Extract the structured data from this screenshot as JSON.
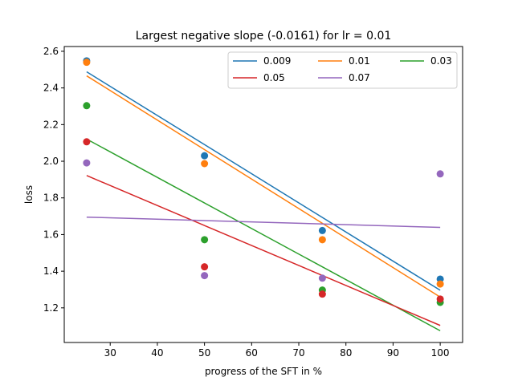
{
  "chart_data": {
    "type": "scatter",
    "title": "Largest negative slope (-0.0161) for lr = 0.01",
    "xlabel": "progress of the SFT in %",
    "ylabel": "loss",
    "xlim": [
      20.25,
      104.75
    ],
    "ylim": [
      1.011,
      2.626
    ],
    "xticks": [
      30,
      40,
      50,
      60,
      70,
      80,
      90,
      100
    ],
    "yticks": [
      1.2,
      1.4,
      1.6,
      1.8,
      2.0,
      2.2,
      2.4,
      2.6
    ],
    "ytick_labels": [
      "1.2",
      "1.4",
      "1.6",
      "1.8",
      "2.0",
      "2.2",
      "2.4",
      "2.6"
    ],
    "x": [
      25,
      50,
      75,
      100
    ],
    "legend_placement": "top-right",
    "legend_columns": 3,
    "grid": false,
    "series": [
      {
        "name": "0.009",
        "color": "#1f77b4",
        "points": [
          2.548,
          2.03,
          1.622,
          1.357
        ],
        "fit": [
          2.488,
          1.296
        ]
      },
      {
        "name": "0.01",
        "color": "#ff7f0e",
        "points": [
          2.54,
          1.987,
          1.572,
          1.33
        ],
        "fit": [
          2.466,
          1.259
        ]
      },
      {
        "name": "0.03",
        "color": "#2ca02c",
        "points": [
          2.303,
          1.572,
          1.297,
          1.23
        ],
        "fit": [
          2.121,
          1.075
        ]
      },
      {
        "name": "0.05",
        "color": "#d62728",
        "points": [
          2.106,
          1.424,
          1.275,
          1.248
        ],
        "fit": [
          1.922,
          1.104
        ]
      },
      {
        "name": "0.07",
        "color": "#9467bd",
        "points": [
          1.991,
          1.376,
          1.362,
          1.931
        ],
        "fit": [
          1.695,
          1.639
        ]
      }
    ]
  }
}
